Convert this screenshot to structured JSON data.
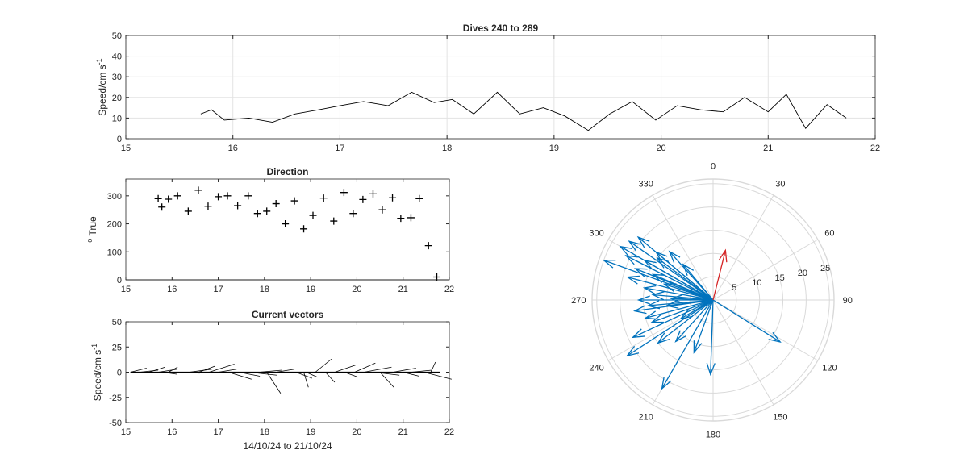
{
  "chart_data": [
    {
      "id": "speed",
      "type": "line",
      "title": "Dives 240 to 289",
      "ylabel": "Speed/cm s",
      "ylabel_sup": "-1",
      "xlim": [
        15,
        22
      ],
      "ylim": [
        0,
        50
      ],
      "xticks": [
        15,
        16,
        17,
        18,
        19,
        20,
        21,
        22
      ],
      "yticks": [
        0,
        10,
        20,
        30,
        40,
        50
      ],
      "grid": true,
      "series": [
        {
          "color": "#000000",
          "x": [
            15.7,
            15.8,
            15.92,
            16.15,
            16.37,
            16.58,
            16.8,
            17.0,
            17.22,
            17.45,
            17.67,
            17.88,
            18.05,
            18.25,
            18.47,
            18.68,
            18.9,
            19.1,
            19.32,
            19.52,
            19.73,
            19.95,
            20.15,
            20.37,
            20.58,
            20.78,
            21.0,
            21.17,
            21.35,
            21.55,
            21.73
          ],
          "y": [
            12,
            14,
            9,
            10,
            8,
            12,
            14,
            16,
            18,
            16,
            22.5,
            17.5,
            19,
            12,
            22.5,
            12,
            15,
            11,
            4,
            12,
            18,
            9,
            16,
            14,
            13,
            20,
            13,
            21.5,
            5,
            16.5,
            10
          ]
        }
      ]
    },
    {
      "id": "direction",
      "type": "scatter",
      "title": "Direction",
      "ylabel": "True",
      "ylabel_prefix": "o",
      "xlim": [
        15,
        22
      ],
      "ylim": [
        0,
        360
      ],
      "xticks": [
        15,
        16,
        17,
        18,
        19,
        20,
        21,
        22
      ],
      "yticks": [
        0,
        100,
        200,
        300
      ],
      "marker": "+",
      "grid": false,
      "series": [
        {
          "color": "#000000",
          "x": [
            15.7,
            15.78,
            15.92,
            16.12,
            16.35,
            16.57,
            16.78,
            17.0,
            17.2,
            17.42,
            17.65,
            17.85,
            18.05,
            18.25,
            18.45,
            18.65,
            18.85,
            19.05,
            19.28,
            19.5,
            19.72,
            19.92,
            20.13,
            20.35,
            20.55,
            20.77,
            20.95,
            21.17,
            21.35,
            21.55,
            21.73
          ],
          "y": [
            290,
            260,
            288,
            300,
            245,
            320,
            263,
            297,
            300,
            265,
            300,
            237,
            245,
            272,
            200,
            282,
            182,
            230,
            292,
            210,
            312,
            237,
            287,
            307,
            250,
            293,
            220,
            222,
            290,
            122,
            10
          ]
        }
      ]
    },
    {
      "id": "vectors",
      "type": "line",
      "title": "Current vectors",
      "ylabel": "Speed/cm s",
      "ylabel_sup": "-1",
      "xlabel": "14/10/24 to 21/10/24",
      "xlim": [
        15,
        22
      ],
      "ylim": [
        -50,
        50
      ],
      "xticks": [
        15,
        16,
        17,
        18,
        19,
        20,
        21,
        22
      ],
      "yticks": [
        -50,
        -25,
        0,
        25,
        50
      ],
      "grid": false,
      "stick_baseline": 0,
      "sticks": [
        {
          "x": 15.1,
          "u": 0.35,
          "v": 4
        },
        {
          "x": 15.3,
          "u": 0.4,
          "v": 2
        },
        {
          "x": 15.5,
          "u": 0.35,
          "v": 5
        },
        {
          "x": 15.7,
          "u": 0.42,
          "v": 3
        },
        {
          "x": 15.8,
          "u": 0.3,
          "v": -2
        },
        {
          "x": 15.92,
          "u": 0.2,
          "v": 5
        },
        {
          "x": 16.15,
          "u": 0.45,
          "v": -1
        },
        {
          "x": 16.37,
          "u": 0.5,
          "v": 3
        },
        {
          "x": 16.58,
          "u": 0.35,
          "v": 6
        },
        {
          "x": 16.8,
          "u": 0.55,
          "v": 8
        },
        {
          "x": 17.0,
          "u": 0.4,
          "v": 3
        },
        {
          "x": 17.22,
          "u": 0.5,
          "v": -7
        },
        {
          "x": 17.45,
          "u": 0.45,
          "v": -4
        },
        {
          "x": 17.67,
          "u": 0.6,
          "v": -3
        },
        {
          "x": 17.88,
          "u": 0.5,
          "v": 2
        },
        {
          "x": 18.05,
          "u": 0.3,
          "v": -21
        },
        {
          "x": 18.25,
          "u": 0.4,
          "v": 3
        },
        {
          "x": 18.68,
          "u": 0.35,
          "v": -6
        },
        {
          "x": 18.85,
          "u": 0.1,
          "v": -15
        },
        {
          "x": 18.9,
          "u": 0.25,
          "v": -5
        },
        {
          "x": 19.1,
          "u": 0.35,
          "v": 13
        },
        {
          "x": 19.32,
          "u": 0.2,
          "v": -10
        },
        {
          "x": 19.52,
          "u": 0.45,
          "v": 7
        },
        {
          "x": 19.73,
          "u": 0.3,
          "v": -5
        },
        {
          "x": 19.95,
          "u": 0.45,
          "v": 9
        },
        {
          "x": 20.15,
          "u": 0.6,
          "v": 5
        },
        {
          "x": 20.37,
          "u": 0.55,
          "v": -3
        },
        {
          "x": 20.5,
          "u": 0.3,
          "v": -15
        },
        {
          "x": 20.78,
          "u": 0.5,
          "v": 4
        },
        {
          "x": 21.0,
          "u": 0.35,
          "v": -4
        },
        {
          "x": 21.17,
          "u": 0.45,
          "v": 2
        },
        {
          "x": 21.45,
          "u": 0.6,
          "v": -7
        },
        {
          "x": 21.6,
          "u": 0.1,
          "v": 10
        }
      ]
    },
    {
      "id": "compass",
      "type": "polar",
      "angle_ticks": [
        0,
        30,
        60,
        90,
        120,
        150,
        180,
        210,
        240,
        270,
        300,
        330
      ],
      "radial_ticks": [
        5,
        10,
        15,
        20,
        25
      ],
      "rlim": [
        0,
        26
      ],
      "angle_zero": "top",
      "angle_direction": "clockwise",
      "arrows": [
        {
          "dir": 290,
          "mag": 25,
          "color": "#0072bd"
        },
        {
          "dir": 300,
          "mag": 23,
          "color": "#0072bd"
        },
        {
          "dir": 305,
          "mag": 22,
          "color": "#0072bd"
        },
        {
          "dir": 310,
          "mag": 21,
          "color": "#0072bd"
        },
        {
          "dir": 297,
          "mag": 21,
          "color": "#0072bd"
        },
        {
          "dir": 285,
          "mag": 19,
          "color": "#0072bd"
        },
        {
          "dir": 292,
          "mag": 18,
          "color": "#0072bd"
        },
        {
          "dir": 300,
          "mag": 17,
          "color": "#0072bd"
        },
        {
          "dir": 310,
          "mag": 16,
          "color": "#0072bd"
        },
        {
          "dir": 318,
          "mag": 14,
          "color": "#0072bd"
        },
        {
          "dir": 280,
          "mag": 15,
          "color": "#0072bd"
        },
        {
          "dir": 275,
          "mag": 13,
          "color": "#0072bd"
        },
        {
          "dir": 270,
          "mag": 16,
          "color": "#0072bd"
        },
        {
          "dir": 265,
          "mag": 14,
          "color": "#0072bd"
        },
        {
          "dir": 262,
          "mag": 17,
          "color": "#0072bd"
        },
        {
          "dir": 255,
          "mag": 15,
          "color": "#0072bd"
        },
        {
          "dir": 245,
          "mag": 19,
          "color": "#0072bd"
        },
        {
          "dir": 250,
          "mag": 14,
          "color": "#0072bd"
        },
        {
          "dir": 237,
          "mag": 22,
          "color": "#0072bd"
        },
        {
          "dir": 232,
          "mag": 15,
          "color": "#0072bd"
        },
        {
          "dir": 222,
          "mag": 12,
          "color": "#0072bd"
        },
        {
          "dir": 210,
          "mag": 22,
          "color": "#0072bd"
        },
        {
          "dir": 182,
          "mag": 16,
          "color": "#0072bd"
        },
        {
          "dir": 200,
          "mag": 12,
          "color": "#0072bd"
        },
        {
          "dir": 122,
          "mag": 17,
          "color": "#0072bd"
        },
        {
          "dir": 272,
          "mag": 9,
          "color": "#0072bd"
        },
        {
          "dir": 288,
          "mag": 11,
          "color": "#0072bd"
        },
        {
          "dir": 307,
          "mag": 15,
          "color": "#0072bd"
        },
        {
          "dir": 320,
          "mag": 10,
          "color": "#0072bd"
        },
        {
          "dir": 263,
          "mag": 10,
          "color": "#0072bd"
        },
        {
          "dir": 293,
          "mag": 14,
          "color": "#0072bd"
        },
        {
          "dir": 240,
          "mag": 8,
          "color": "#0072bd"
        },
        {
          "dir": 14,
          "mag": 11,
          "color": "#d62728"
        }
      ]
    }
  ]
}
